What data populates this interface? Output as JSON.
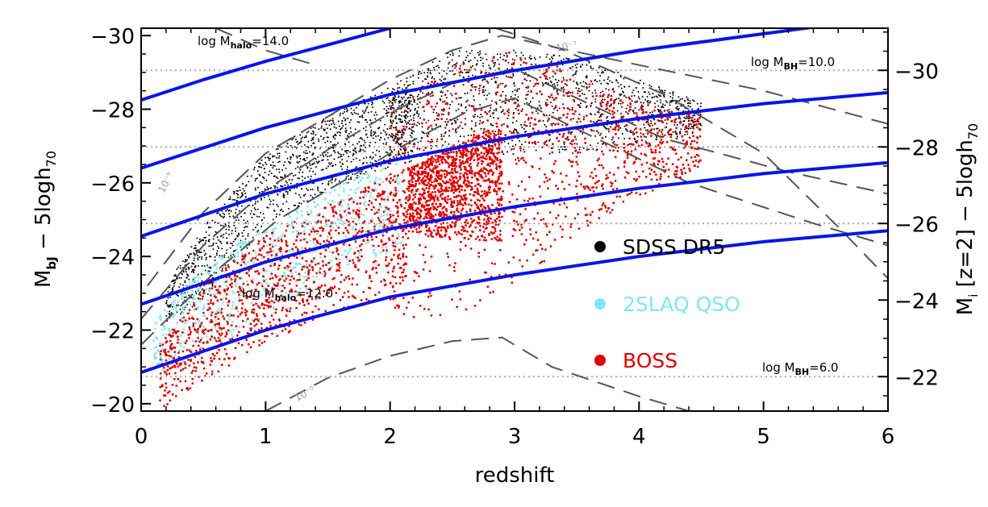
{
  "chart_data": {
    "type": "scatter",
    "xlabel": "redshift",
    "ylabel_left": {
      "base": "M",
      "sub": "bJ",
      "rest": " − 5logh",
      "rest_sub": "70"
    },
    "ylabel_right": {
      "base": "M",
      "sub": "i",
      "mid": " [z=2] − 5logh",
      "rest_sub": "70"
    },
    "xlim": [
      0,
      6
    ],
    "ylim_left": [
      -19.8,
      -30.2
    ],
    "ylim_right": [
      -21.1,
      -31.1
    ],
    "x_ticks": [
      0,
      1,
      2,
      3,
      4,
      5,
      6
    ],
    "x_tick_labels": [
      "0",
      "1",
      "2",
      "3",
      "4",
      "5",
      "6"
    ],
    "y_ticks_left": [
      -30,
      -28,
      -26,
      -24,
      -22,
      -20
    ],
    "y_tick_labels_left": [
      "−30",
      "−28",
      "−26",
      "−24",
      "−22",
      "−20"
    ],
    "y_ticks_right": [
      -30,
      -28,
      -26,
      -24,
      -22
    ],
    "y_tick_labels_right": [
      "−30",
      "−28",
      "−26",
      "−24",
      "−22"
    ],
    "legend_position": "center-right",
    "series": [
      {
        "name": "SDSS DR5",
        "color": "#000000",
        "regions": [
          {
            "x": [
              0.2,
              0.5,
              1.0,
              1.5,
              2.0,
              2.2
            ],
            "bright": [
              -23.2,
              -24.8,
              -26.8,
              -27.8,
              -28.6,
              -28.6
            ],
            "faint": [
              -22.2,
              -22.8,
              -24.8,
              -25.8,
              -26.4,
              -26.6
            ]
          },
          {
            "x": [
              2.0,
              2.5,
              3.0,
              3.5,
              4.0,
              4.5
            ],
            "bright": [
              -28.6,
              -29.6,
              -29.6,
              -29.4,
              -28.8,
              -28.2
            ],
            "faint": [
              -26.6,
              -26.8,
              -26.6,
              -26.8,
              -27.0,
              -27.4
            ]
          }
        ]
      },
      {
        "name": "2SLAQ QSO",
        "color": "#7fe8ee",
        "regions": [
          {
            "x": [
              0.1,
              0.4,
              0.8,
              1.2,
              1.6,
              2.1
            ],
            "bright": [
              -22.2,
              -23.4,
              -24.4,
              -25.2,
              -26.0,
              -26.6
            ],
            "faint": [
              -20.8,
              -21.2,
              -21.8,
              -22.8,
              -23.6,
              -24.2
            ]
          }
        ]
      },
      {
        "name": "BOSS",
        "color": "#dd0000",
        "regions": [
          {
            "x": [
              0.15,
              0.5,
              1.0,
              1.5,
              2.0,
              2.15
            ],
            "bright": [
              -21.6,
              -23.2,
              -24.6,
              -25.4,
              -26.2,
              -26.4
            ],
            "faint": [
              -19.8,
              -20.6,
              -21.6,
              -22.4,
              -23.0,
              -23.2
            ]
          },
          {
            "x": [
              2.15,
              2.5,
              2.9
            ],
            "bright": [
              -26.4,
              -27.0,
              -27.6
            ],
            "faint": [
              -24.6,
              -24.5,
              -24.4
            ]
          },
          {
            "x": [
              2.0,
              2.5,
              3.0,
              3.5,
              4.0,
              4.5
            ],
            "bright": [
              -28.0,
              -29.2,
              -29.6,
              -29.0,
              -28.2,
              -27.8
            ],
            "faint": [
              -22.2,
              -22.4,
              -23.0,
              -24.6,
              -25.6,
              -26.4
            ]
          }
        ]
      }
    ],
    "halo_mass_curves": [
      {
        "label": "14.0",
        "points": [
          [
            0,
            -28.25
          ],
          [
            0.5,
            -28.8
          ],
          [
            1,
            -29.3
          ],
          [
            1.5,
            -29.75
          ],
          [
            2,
            -30.2
          ]
        ]
      },
      {
        "label": "",
        "points": [
          [
            0,
            -26.4
          ],
          [
            1,
            -27.5
          ],
          [
            2,
            -28.4
          ],
          [
            3,
            -29.05
          ],
          [
            4,
            -29.6
          ],
          [
            5,
            -30.05
          ],
          [
            6,
            -30.5
          ]
        ]
      },
      {
        "label": "",
        "points": [
          [
            0,
            -24.55
          ],
          [
            1,
            -25.7
          ],
          [
            2,
            -26.6
          ],
          [
            3,
            -27.25
          ],
          [
            4,
            -27.75
          ],
          [
            5,
            -28.15
          ],
          [
            6,
            -28.45
          ]
        ]
      },
      {
        "label": "",
        "points": [
          [
            0,
            -22.7
          ],
          [
            1,
            -23.85
          ],
          [
            2,
            -24.75
          ],
          [
            3,
            -25.35
          ],
          [
            4,
            -25.85
          ],
          [
            5,
            -26.25
          ],
          [
            6,
            -26.55
          ]
        ]
      },
      {
        "label": "12.0",
        "points": [
          [
            0,
            -20.85
          ],
          [
            1,
            -22.0
          ],
          [
            2,
            -22.9
          ],
          [
            3,
            -23.5
          ],
          [
            4,
            -24.0
          ],
          [
            5,
            -24.4
          ],
          [
            6,
            -24.7
          ]
        ]
      }
    ],
    "bh_mass_lines": [
      {
        "label": "10.0",
        "y_right": -30
      },
      {
        "label": "",
        "y_right": -28
      },
      {
        "label": "",
        "y_right": -26
      },
      {
        "label": "6.0",
        "y_right": -22
      }
    ],
    "density_contours": [
      {
        "label": "10⁻⁹",
        "points": [
          [
            0.05,
            -23.2
          ],
          [
            0.5,
            -25.2
          ],
          [
            1.0,
            -26.8
          ],
          [
            1.5,
            -27.8
          ],
          [
            2.0,
            -28.8
          ],
          [
            2.5,
            -29.6
          ],
          [
            2.9,
            -30.0
          ],
          [
            3.3,
            -29.7
          ],
          [
            4.0,
            -29.2
          ],
          [
            5.0,
            -28.5
          ],
          [
            6.0,
            -27.6
          ]
        ]
      },
      {
        "label": "",
        "points": [
          [
            0.0,
            -22.3
          ],
          [
            0.5,
            -24.3
          ],
          [
            1.0,
            -25.8
          ],
          [
            1.5,
            -26.9
          ],
          [
            2.0,
            -27.9
          ],
          [
            2.5,
            -28.7
          ],
          [
            3.0,
            -29.1
          ],
          [
            3.5,
            -28.3
          ],
          [
            4.2,
            -27.2
          ],
          [
            5.2,
            -26.3
          ],
          [
            6.0,
            -25.7
          ]
        ]
      },
      {
        "label": "",
        "points": [
          [
            0.0,
            -21.6
          ],
          [
            0.6,
            -23.6
          ],
          [
            1.1,
            -25.0
          ],
          [
            1.6,
            -26.0
          ],
          [
            2.1,
            -27.0
          ],
          [
            2.6,
            -27.9
          ],
          [
            3.0,
            -28.3
          ],
          [
            3.6,
            -27.3
          ],
          [
            4.4,
            -26.0
          ],
          [
            5.4,
            -24.9
          ],
          [
            6.0,
            -24.3
          ]
        ]
      },
      {
        "label": "10⁻⁵",
        "points": [
          [
            1.0,
            -19.8
          ],
          [
            1.5,
            -20.7
          ],
          [
            2.0,
            -21.3
          ],
          [
            2.5,
            -21.7
          ],
          [
            2.9,
            -21.8
          ],
          [
            3.3,
            -21.0
          ],
          [
            4.0,
            -20.2
          ],
          [
            4.4,
            -19.8
          ]
        ]
      },
      {
        "label": "10⁻⁷",
        "points": [
          [
            2.85,
            -30.2
          ],
          [
            3.4,
            -29.6
          ],
          [
            4.2,
            -28.4
          ],
          [
            5.0,
            -26.8
          ],
          [
            5.6,
            -24.8
          ],
          [
            6.0,
            -23.4
          ]
        ]
      },
      {
        "label": "",
        "points": [
          [
            0.6,
            -30.2
          ],
          [
            1.0,
            -29.6
          ],
          [
            1.4,
            -29.2
          ]
        ]
      }
    ],
    "annotations": {
      "halo_top": {
        "prefix": "log M",
        "sub": "halo",
        "value": "=14.0"
      },
      "halo_bottom": {
        "prefix": "log M",
        "sub": "halo",
        "value": "=12.0"
      },
      "bh_top": {
        "prefix": "log M",
        "sub": "BH",
        "value": "=10.0"
      },
      "bh_bottom": {
        "prefix": "log M",
        "sub": "BH",
        "value": "=6.0"
      },
      "contour_left": "10⁻⁹",
      "contour_bottom": "10⁻⁵",
      "contour_top": "10⁻⁷"
    },
    "colors": {
      "curve": "#0a14e6",
      "contour": "#555555",
      "dotted": "#aaaaaa"
    }
  }
}
